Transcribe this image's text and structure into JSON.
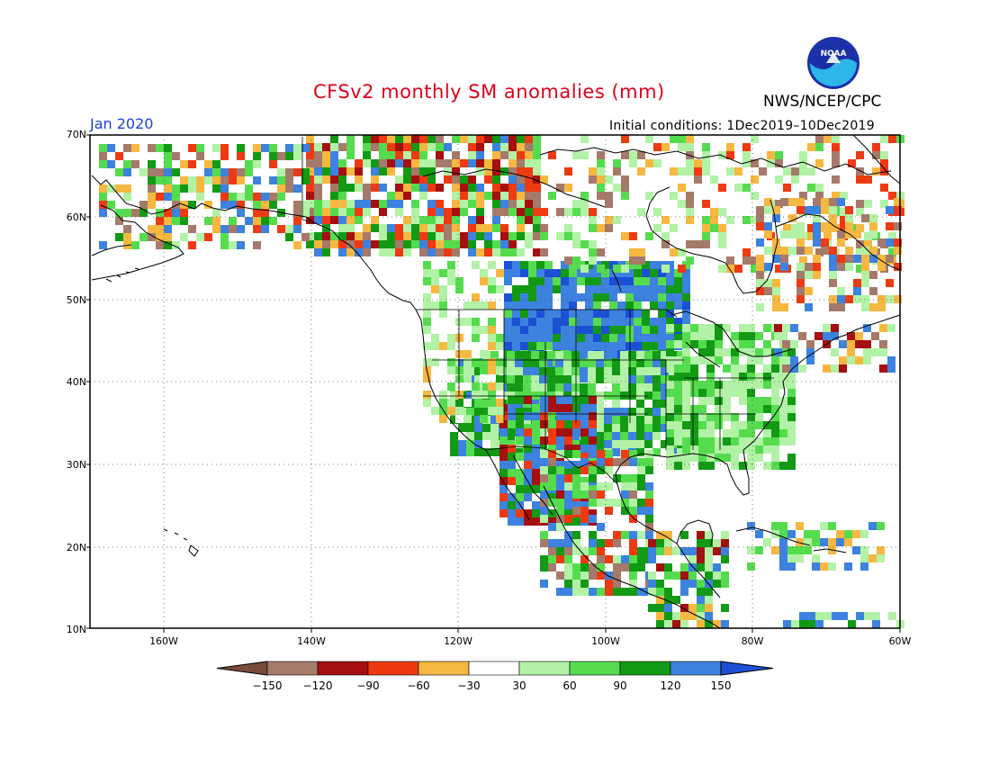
{
  "title": "CFSv2 monthly SM anomalies (mm)",
  "org": "NWS/NCEP/CPC",
  "logo_text": "NOAA",
  "forecast_month": "Jan 2020",
  "initial_conditions": "Initial conditions: 1Dec2019–10Dec2019",
  "map": {
    "lat_labels": [
      "70N",
      "60N",
      "50N",
      "40N",
      "30N",
      "20N",
      "10N"
    ],
    "lon_labels": [
      "160W",
      "140W",
      "120W",
      "100W",
      "80W",
      "60W"
    ],
    "extent": {
      "lon_min": -170,
      "lon_max": -60,
      "lat_min": 10,
      "lat_max": 70
    },
    "grid": "dotted"
  },
  "colorbar": {
    "labels": [
      "−150",
      "−120",
      "−90",
      "−60",
      "−30",
      "30",
      "60",
      "90",
      "120",
      "150"
    ],
    "colors": [
      "#7a4b3a",
      "#a57a6a",
      "#a50f0f",
      "#ee3a12",
      "#f6b840",
      "#ffffff",
      "#b2f2a6",
      "#55dc4e",
      "#129a14",
      "#3c82de",
      "#1c50d4"
    ]
  }
}
